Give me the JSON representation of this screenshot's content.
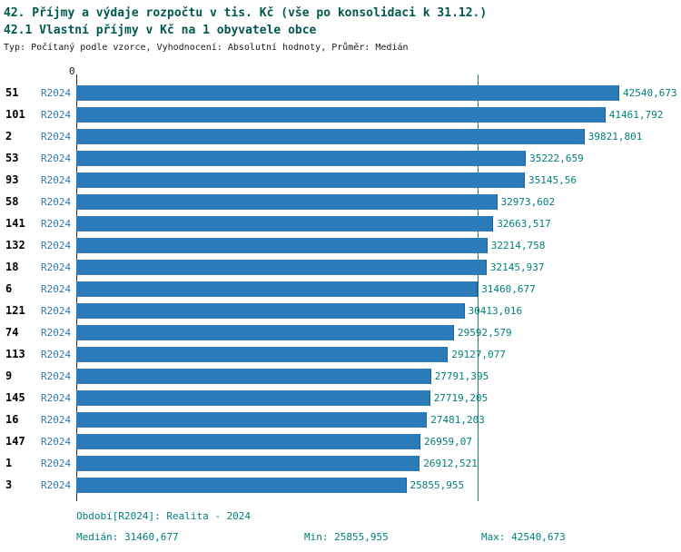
{
  "title": "42. Příjmy a výdaje rozpočtu v tis. Kč (vše po konsolidaci k 31.12.)",
  "subtitle": "42.1 Vlastní příjmy v Kč na 1 obyvatele obce",
  "meta_line": "Typ: Počítaný podle vzorce, Vyhodnocení: Absolutní hodnoty, Průměr: Medián",
  "axis_zero_label": "0",
  "colors": {
    "bar_fill": "#2b7bb8",
    "bar_border": "#1e5f91",
    "title_text": "#00584e",
    "value_text": "#00807a",
    "series_text": "#2b7bb8",
    "median_line": "#1f7a7a",
    "axis_line": "#2b2b2b"
  },
  "footer": {
    "period": "Období[R2024]: Realita - 2024",
    "median": "Medián: 31460,677",
    "min": "Min: 25855,955",
    "max": "Max: 42540,673"
  },
  "chart_data": {
    "type": "bar",
    "orientation": "horizontal",
    "title": "42. Příjmy a výdaje rozpočtu v tis. Kč (vše po konsolidaci k 31.12.)",
    "subtitle": "42.1 Vlastní příjmy v Kč na 1 obyvatele obce",
    "series_label": "R2024",
    "categories": [
      "51",
      "101",
      "2",
      "53",
      "93",
      "58",
      "141",
      "132",
      "18",
      "6",
      "121",
      "74",
      "113",
      "9",
      "145",
      "16",
      "147",
      "1",
      "3"
    ],
    "values": [
      42540.673,
      41461.792,
      39821.801,
      35222.659,
      35145.56,
      32973.602,
      32663.517,
      32214.758,
      32145.937,
      31460.677,
      30413.016,
      29592.579,
      29127.077,
      27791.395,
      27719.205,
      27481.203,
      26959.07,
      26912.521,
      25855.955
    ],
    "value_labels": [
      "42540,673",
      "41461,792",
      "39821,801",
      "35222,659",
      "35145,56",
      "32973,602",
      "32663,517",
      "32214,758",
      "32145,937",
      "31460,677",
      "30413,016",
      "29592,579",
      "29127,077",
      "27791,395",
      "27719,205",
      "27481,203",
      "26959,07",
      "26912,521",
      "25855,955"
    ],
    "xlim": [
      0,
      42540.673
    ],
    "x_ticks": [
      "0"
    ],
    "grid": false,
    "legend_position": "none",
    "median": 31460.677,
    "min": 25855.955,
    "max": 42540.673
  }
}
